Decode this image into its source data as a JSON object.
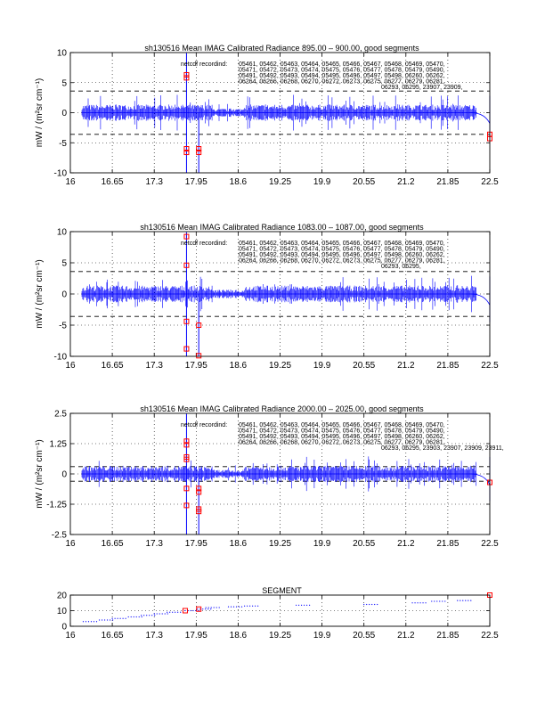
{
  "colors": {
    "trace": "#0000ff",
    "marker": "#ff0000",
    "frame": "#000000"
  },
  "chart_data": [
    {
      "type": "line",
      "title": "sh130516 Mean IMAG Calibrated Radiance 895.00 – 900.00, good segments",
      "ylabel": "mW / (m²sr cm⁻¹)",
      "xlim": [
        16,
        22.5
      ],
      "ylim": [
        -10,
        10
      ],
      "xticks": [
        "16",
        "16.65",
        "17.3",
        "17.95",
        "18.6",
        "19.25",
        "19.9",
        "20.55",
        "21.2",
        "21.85",
        "22.5"
      ],
      "yticks": [
        "-10",
        "-5",
        "0",
        "5",
        "10"
      ],
      "grid": true,
      "threshold_lines": [
        3.6,
        -3.6
      ],
      "annotation_label": "netcdf recordind:",
      "annotation_lines": [
        "05461, 05462, 05463, 05464, 05465, 05466, 05467, 05468, 05469, 05470,",
        "05471, 05472, 05473, 05474, 05475, 05476, 05477, 05478, 05479, 05490,",
        "05491, 05492, 05493, 05494, 05495, 05496, 05497, 05498, 06260, 06262,",
        "06264, 06266, 06268, 06270, 06272, 06273, 06275, 06277, 06279, 06281,",
        "06293, 06295, 23907, 23909,"
      ],
      "markers": [
        {
          "x": 17.8,
          "y": 6.3
        },
        {
          "x": 17.8,
          "y": 5.8
        },
        {
          "x": 17.8,
          "y": -6.0
        },
        {
          "x": 17.8,
          "y": -6.6
        },
        {
          "x": 17.99,
          "y": -6.0
        },
        {
          "x": 17.99,
          "y": -6.6
        },
        {
          "x": 22.5,
          "y": -3.6
        },
        {
          "x": 22.5,
          "y": -4.3
        }
      ]
    },
    {
      "type": "line",
      "title": "sh130516 Mean IMAG Calibrated Radiance 1083.00 – 1087.00, good segments",
      "ylabel": "mW / (m²sr cm⁻¹)",
      "xlim": [
        16,
        22.5
      ],
      "ylim": [
        -10,
        10
      ],
      "xticks": [
        "16",
        "16.65",
        "17.3",
        "17.95",
        "18.6",
        "19.25",
        "19.9",
        "20.55",
        "21.2",
        "21.85",
        "22.5"
      ],
      "yticks": [
        "-10",
        "-5",
        "0",
        "5",
        "10"
      ],
      "grid": true,
      "threshold_lines": [
        3.6,
        -3.6
      ],
      "annotation_label": "netcdf recordind:",
      "annotation_lines": [
        "05461, 05462, 05463, 05464, 05465, 05466, 05467, 05468, 05469, 05470,",
        "05471, 05472, 05473, 05474, 05475, 05476, 05477, 05478, 05479, 05490,",
        "05491, 05492, 05493, 05494, 05495, 05496, 05497, 05498, 06260, 06262,",
        "06264, 06266, 06268, 06270, 06272, 06273, 06275, 06277, 06279, 06281,",
        "06293, 06295,"
      ],
      "markers": [
        {
          "x": 17.8,
          "y": 9.2
        },
        {
          "x": 17.8,
          "y": 4.6
        },
        {
          "x": 17.8,
          "y": -4.4
        },
        {
          "x": 17.8,
          "y": -8.8
        },
        {
          "x": 17.99,
          "y": -5.0
        },
        {
          "x": 17.99,
          "y": -9.9
        }
      ]
    },
    {
      "type": "line",
      "title": "sh130516 Mean IMAG Calibrated Radiance 2000.00 – 2025.00, good segments",
      "ylabel": "mW / (m²sr cm⁻¹)",
      "xlim": [
        16,
        22.5
      ],
      "ylim": [
        -2.5,
        2.5
      ],
      "xticks": [
        "16",
        "16.65",
        "17.3",
        "17.95",
        "18.6",
        "19.25",
        "19.9",
        "20.55",
        "21.2",
        "21.85",
        "22.5"
      ],
      "yticks": [
        "-2.5",
        "-1.25",
        "0",
        "1.25",
        "2.5"
      ],
      "grid": true,
      "threshold_lines": [
        0.3,
        -0.3
      ],
      "annotation_label": "netcdf recordind:",
      "annotation_lines": [
        "05461, 05462, 05463, 05464, 05465, 05466, 05467, 05468, 05469, 05470,",
        "05471, 05472, 05473, 05474, 05475, 05476, 05477, 05478, 05479, 05490,",
        "05491, 05492, 05493, 05494, 05495, 05496, 05497, 05498, 06260, 06262,",
        "06264, 06266, 06268, 06270, 06272, 06273, 06275, 06277, 06279, 06281,",
        "06293, 06295, 23903, 23907, 23909, 23911,"
      ],
      "markers": [
        {
          "x": 17.8,
          "y": 1.35
        },
        {
          "x": 17.8,
          "y": 1.2
        },
        {
          "x": 17.8,
          "y": 0.7
        },
        {
          "x": 17.8,
          "y": 0.6
        },
        {
          "x": 17.8,
          "y": -0.6
        },
        {
          "x": 17.8,
          "y": -1.3
        },
        {
          "x": 17.99,
          "y": -0.6
        },
        {
          "x": 17.99,
          "y": -0.75
        },
        {
          "x": 17.99,
          "y": -1.45
        },
        {
          "x": 17.99,
          "y": -1.55
        },
        {
          "x": 22.5,
          "y": -0.35
        }
      ]
    },
    {
      "type": "scatter",
      "title": "SEGMENT",
      "xlim": [
        16,
        22.5
      ],
      "ylim": [
        0,
        20
      ],
      "xticks": [
        "16",
        "16.65",
        "17.3",
        "17.95",
        "18.6",
        "19.25",
        "19.9",
        "20.55",
        "21.2",
        "21.85",
        "22.5"
      ],
      "yticks": [
        "0",
        "10",
        "20"
      ],
      "grid": true,
      "series": [
        {
          "values": [
            [
              16.2,
              3
            ],
            [
              16.45,
              4
            ],
            [
              16.65,
              5
            ],
            [
              16.9,
              6
            ],
            [
              17.1,
              7
            ],
            [
              17.3,
              8
            ],
            [
              17.5,
              9
            ],
            [
              17.78,
              10
            ],
            [
              17.97,
              11
            ],
            [
              18.1,
              12
            ],
            [
              18.45,
              12.5
            ],
            [
              18.7,
              13
            ],
            [
              19.5,
              13.5
            ],
            [
              20.55,
              14
            ],
            [
              21.3,
              15
            ],
            [
              21.6,
              16
            ],
            [
              22.0,
              16.5
            ]
          ]
        }
      ],
      "markers": [
        {
          "x": 17.78,
          "y": 10
        },
        {
          "x": 17.99,
          "y": 11
        },
        {
          "x": 22.5,
          "y": 20
        }
      ]
    }
  ]
}
